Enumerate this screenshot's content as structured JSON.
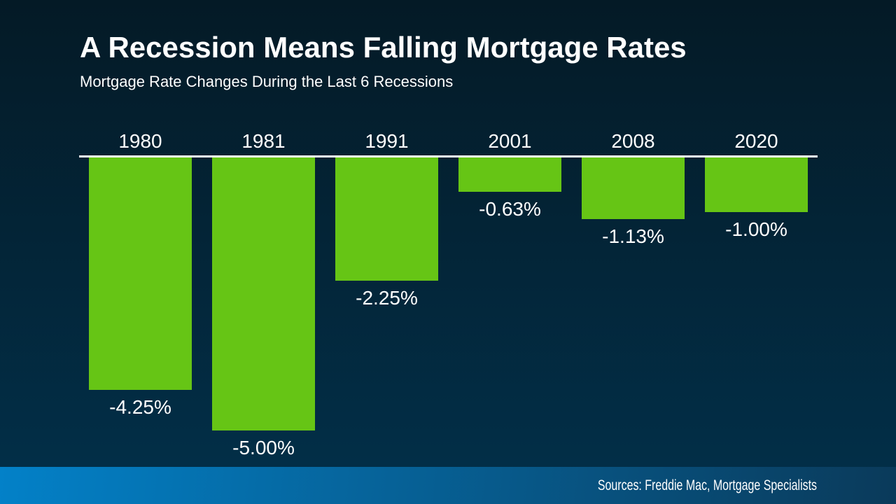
{
  "slide": {
    "title": "A Recession Means Falling Mortgage Rates",
    "subtitle": "Mortgage Rate Changes During the Last 6 Recessions",
    "source": "Sources: Freddie Mac, Mortgage Specialists"
  },
  "colors": {
    "bar_green": "#66c515",
    "bg_top": "#041a26",
    "bg_bottom": "#02304a",
    "footer_left": "#0381c8",
    "footer_right": "#0a3a5a",
    "axis": "#ffffff",
    "text": "#ffffff"
  },
  "chart_data": {
    "type": "bar",
    "title": "A Recession Means Falling Mortgage Rates",
    "subtitle": "Mortgage Rate Changes During the Last 6 Recessions",
    "categories": [
      "1980",
      "1981",
      "1991",
      "2001",
      "2008",
      "2020"
    ],
    "values": [
      -4.25,
      -5.0,
      -2.25,
      -0.63,
      -1.13,
      -1.0
    ],
    "value_labels": [
      "-4.25%",
      "-5.00%",
      "-2.25%",
      "-0.63%",
      "-1.13%",
      "-1.00%"
    ],
    "xlabel": "",
    "ylabel": "",
    "ylim": [
      -5.5,
      0
    ],
    "grid": false,
    "legend": false,
    "orientation": "columns-downward-from-top-axis",
    "bar_color": "#66c515",
    "value_label_position": "below-bar-end",
    "source_note": "Sources: Freddie Mac, Mortgage Specialists"
  }
}
